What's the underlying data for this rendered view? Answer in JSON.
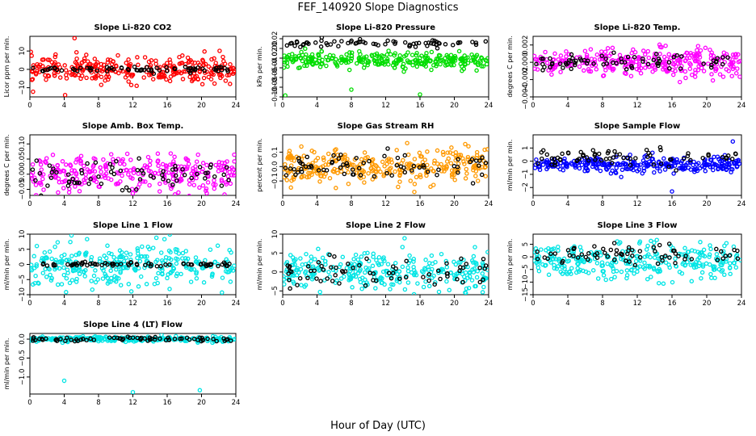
{
  "title": "FEF_140920  Slope Diagnostics",
  "xlabel": "Hour of Day (UTC)",
  "chart_data": [
    {
      "type": "scatter",
      "title": "Slope Li-820 CO2",
      "ylabel": "Licor ppm per min.",
      "xlim": [
        0,
        24
      ],
      "ylim": [
        -15,
        18
      ],
      "yticks": [
        -10,
        0,
        10
      ],
      "xticks": [
        0,
        4,
        8,
        12,
        16,
        20,
        24
      ],
      "colors": [
        "#ff0000",
        "#000000"
      ],
      "spread": [
        3.5,
        0.8
      ],
      "outlier_values": [
        [
          5.2,
          17
        ],
        [
          4.1,
          -14
        ]
      ]
    },
    {
      "type": "scatter",
      "title": "Slope Li-820 Pressure",
      "ylabel": "kPa per min.",
      "xlim": [
        0,
        24
      ],
      "ylim": [
        -0.1,
        0.025
      ],
      "yticks": [
        -0.1,
        -0.08,
        -0.06,
        -0.04,
        -0.02,
        0.0,
        0.02
      ],
      "xticks": [
        0,
        4,
        8,
        12,
        16,
        20,
        24
      ],
      "colors": [
        "#00dd00",
        "#000000"
      ],
      "center": [
        -0.025,
        0.01
      ],
      "spread": [
        0.008,
        0.004
      ],
      "outlier_values": [
        [
          8,
          -0.085
        ],
        [
          16,
          -0.095
        ],
        [
          0.3,
          -0.097
        ]
      ]
    },
    {
      "type": "scatter",
      "title": "Slope Li-820 Temp.",
      "ylabel": "degrees C per min.",
      "xlim": [
        0,
        24
      ],
      "ylim": [
        -0.004,
        0.003
      ],
      "yticks": [
        -0.004,
        -0.002,
        0.0,
        0.002
      ],
      "xticks": [
        0,
        4,
        8,
        12,
        16,
        20,
        24
      ],
      "colors": [
        "#ff00ff",
        "#000000"
      ],
      "spread": [
        0.0008,
        0.0005
      ]
    },
    {
      "type": "scatter",
      "title": "Slope Amb. Box Temp.",
      "ylabel": "degrees C per min.",
      "xlim": [
        0,
        24
      ],
      "ylim": [
        -0.07,
        0.13
      ],
      "yticks": [
        -0.05,
        0.0,
        0.05,
        0.1
      ],
      "xticks": [
        0,
        4,
        8,
        12,
        16,
        20,
        24
      ],
      "colors": [
        "#ff00ff",
        "#000000"
      ],
      "spread": [
        0.03,
        0.025
      ]
    },
    {
      "type": "scatter",
      "title": "Slope Gas Stream RH",
      "ylabel": "percent per min.",
      "xlim": [
        0,
        24
      ],
      "ylim": [
        -0.2,
        0.22
      ],
      "yticks": [
        -0.1,
        0.0,
        0.1
      ],
      "xticks": [
        0,
        4,
        8,
        12,
        16,
        20,
        24
      ],
      "colors": [
        "#ff9900",
        "#000000"
      ],
      "spread": [
        0.06,
        0.05
      ]
    },
    {
      "type": "scatter",
      "title": "Slope Sample Flow",
      "ylabel": "ml/min per min.",
      "xlim": [
        0,
        24
      ],
      "ylim": [
        -2.6,
        2.0
      ],
      "yticks": [
        -2,
        -1,
        0,
        1
      ],
      "xticks": [
        0,
        4,
        8,
        12,
        16,
        20,
        24
      ],
      "colors": [
        "#0000ff",
        "#000000"
      ],
      "center": [
        -0.3,
        0.3
      ],
      "spread": [
        0.3,
        0.3
      ],
      "outlier_values": [
        [
          16,
          -2.3
        ],
        [
          23,
          1.5
        ]
      ]
    },
    {
      "type": "scatter",
      "title": "Slope Line 1 Flow",
      "ylabel": "ml/min per min.",
      "xlim": [
        0,
        24
      ],
      "ylim": [
        -10,
        10
      ],
      "yticks": [
        -10,
        -5,
        0,
        5,
        10
      ],
      "xticks": [
        0,
        4,
        8,
        12,
        16,
        20,
        24
      ],
      "colors": [
        "#00e5e5",
        "#000000"
      ],
      "spread": [
        3.5,
        0.4
      ]
    },
    {
      "type": "scatter",
      "title": "Slope Line 2 Flow",
      "ylabel": "ml/min per min.",
      "xlim": [
        0,
        24
      ],
      "ylim": [
        -6,
        10
      ],
      "yticks": [
        -5,
        0,
        5,
        10
      ],
      "xticks": [
        0,
        4,
        8,
        12,
        16,
        20,
        24
      ],
      "colors": [
        "#00e5e5",
        "#000000"
      ],
      "spread": [
        2.5,
        2.0
      ]
    },
    {
      "type": "scatter",
      "title": "Slope Line 3 Flow",
      "ylabel": "ml/min per min.",
      "xlim": [
        0,
        24
      ],
      "ylim": [
        -15,
        9
      ],
      "yticks": [
        -15,
        -10,
        -5,
        0,
        5
      ],
      "xticks": [
        0,
        4,
        8,
        12,
        16,
        20,
        24
      ],
      "colors": [
        "#00e5e5",
        "#000000"
      ],
      "center": [
        -2,
        1
      ],
      "spread": [
        3.5,
        2.5
      ]
    },
    {
      "type": "scatter",
      "title": "Slope Line 4 (LT) Flow",
      "ylabel": "ml/min per min.",
      "xlim": [
        0,
        24
      ],
      "ylim": [
        -1.45,
        0.15
      ],
      "yticks": [
        -1.0,
        -0.5,
        0.0
      ],
      "xticks": [
        0,
        4,
        8,
        12,
        16,
        20,
        24
      ],
      "colors": [
        "#00e5e5",
        "#000000"
      ],
      "spread": [
        0.03,
        0.03
      ],
      "outlier_values": [
        [
          4,
          -1.1
        ],
        [
          12,
          -1.4
        ],
        [
          19.8,
          -1.35
        ]
      ]
    }
  ]
}
